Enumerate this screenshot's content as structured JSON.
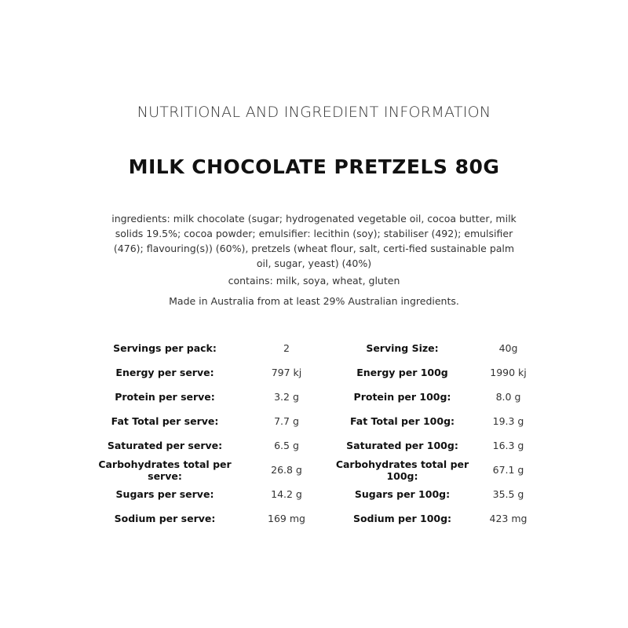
{
  "heading": "NUTRITIONAL AND INGREDIENT INFORMATION",
  "title": "MILK CHOCOLATE PRETZELS 80G",
  "ingredients": "ingredients: milk chocolate (sugar; hydrogenated vegetable oil, cocoa butter, milk solids 19.5%; cocoa powder; emulsifier: lecithin (soy); stabiliser (492); emulsifier (476); flavouring(s)) (60%), pretzels (wheat flour, salt, certi-fied sustainable palm oil, sugar, yeast) (40%)",
  "contains": "contains: milk, soya, wheat, gluten",
  "made_in": "Made in Australia from at least 29% Australian ingredients.",
  "nutrition": [
    {
      "label": "Servings per pack:",
      "value": "2",
      "label2": "Serving Size:",
      "value2": "40g"
    },
    {
      "label": "Energy per serve:",
      "value": "797 kj",
      "label2": "Energy per 100g",
      "value2": "1990 kj"
    },
    {
      "label": "Protein per serve:",
      "value": "3.2 g",
      "label2": "Protein per 100g:",
      "value2": "8.0 g"
    },
    {
      "label": "Fat Total per serve:",
      "value": "7.7 g",
      "label2": "Fat Total per 100g:",
      "value2": "19.3 g"
    },
    {
      "label": "Saturated per serve:",
      "value": "6.5 g",
      "label2": "Saturated per 100g:",
      "value2": "16.3 g"
    },
    {
      "label": "Carbohydrates total per serve:",
      "value": "26.8 g",
      "label2": "Carbohydrates total per 100g:",
      "value2": "67.1 g"
    },
    {
      "label": "Sugars per serve:",
      "value": "14.2 g",
      "label2": "Sugars per 100g:",
      "value2": "35.5 g"
    },
    {
      "label": "Sodium per serve:",
      "value": "169 mg",
      "label2": "Sodium per 100g:",
      "value2": "423 mg"
    }
  ]
}
